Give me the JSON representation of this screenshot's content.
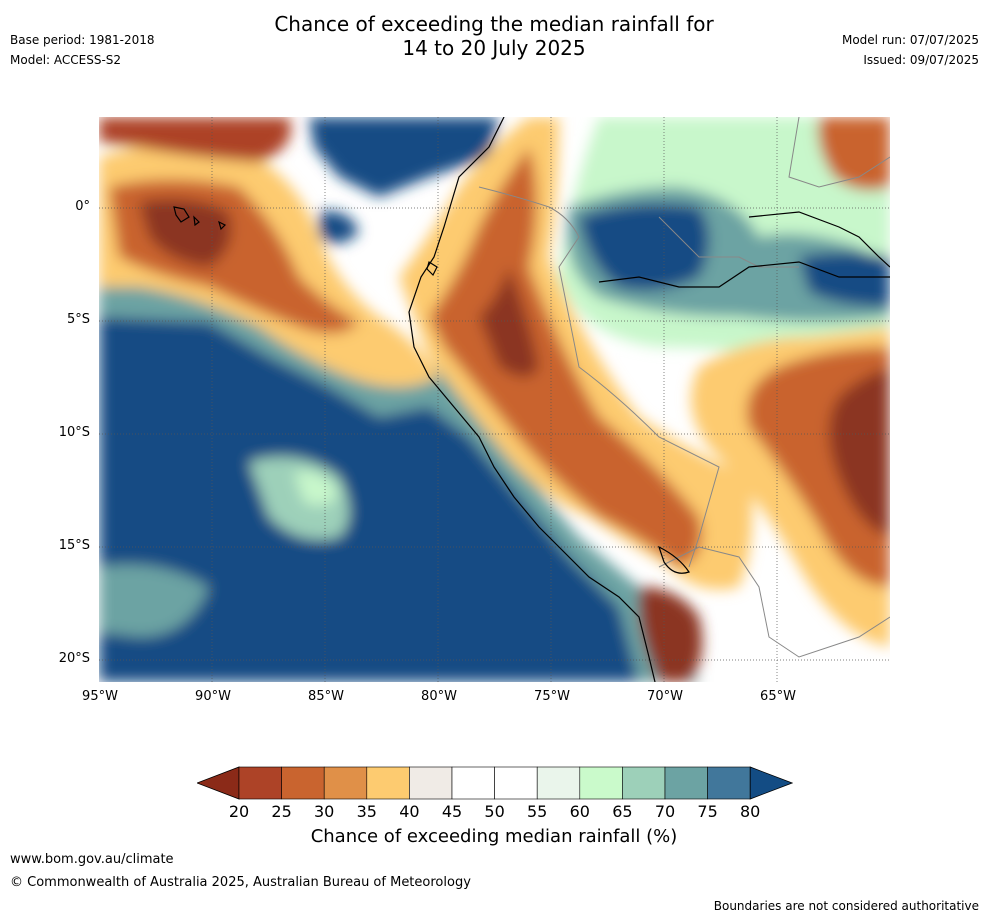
{
  "title_line1": "Chance of exceeding the median rainfall for",
  "title_line2": "14 to 20 July 2025",
  "base_period": "Base period: 1981-2018",
  "model": "Model: ACCESS-S2",
  "model_run": "Model run: 07/07/2025",
  "issued": "Issued: 09/07/2025",
  "map": {
    "lat_ticks": [
      "0°",
      "5°S",
      "10°S",
      "15°S",
      "20°S"
    ],
    "lon_ticks": [
      "95°W",
      "90°W",
      "85°W",
      "80°W",
      "75°W",
      "70°W",
      "65°W"
    ],
    "colors": {
      "dry_dark": "#8b3420",
      "dry_mid": "#c8602d",
      "dry_light": "#e08f47",
      "dry_pale": "#fdcb70",
      "neutral": "#ffffff",
      "wet_pale": "#c8f7cb",
      "wet_mid": "#9dd0b9",
      "wet_teal": "#6ca3a3",
      "wet_dark": "#134c84"
    }
  },
  "colorbar": {
    "ticks": [
      "20",
      "25",
      "30",
      "35",
      "40",
      "45",
      "50",
      "55",
      "60",
      "65",
      "70",
      "75",
      "80"
    ],
    "colors": [
      "#8b2a18",
      "#ad4327",
      "#c9642f",
      "#e09048",
      "#fdcb70",
      "#f0ebe6",
      "#ffffff",
      "#ffffff",
      "#eaf5eb",
      "#cafacb",
      "#9dd0b9",
      "#6ca3a3",
      "#41779b",
      "#134c84"
    ],
    "label": "Chance of exceeding median rainfall (%)"
  },
  "footer": {
    "url": "www.bom.gov.au/climate",
    "copyright": "© Commonwealth of Australia 2025, Australian Bureau of Meteorology",
    "disclaimer": "Boundaries are not considered authoritative"
  }
}
